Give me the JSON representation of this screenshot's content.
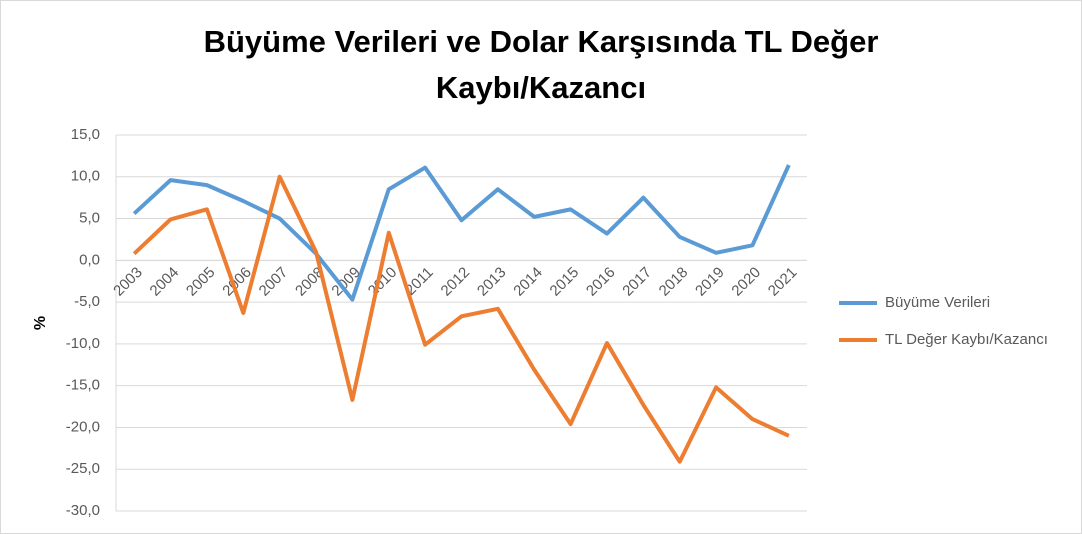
{
  "chart_data": {
    "type": "line",
    "title": "Büyüme Verileri ve Dolar Karşısında TL Değer Kaybı/Kazancı",
    "y_label": "%",
    "categories": [
      "2003",
      "2004",
      "2005",
      "2006",
      "2007",
      "2008",
      "2009",
      "2010",
      "2011",
      "2012",
      "2013",
      "2014",
      "2015",
      "2016",
      "2017",
      "2018",
      "2019",
      "2020",
      "2021"
    ],
    "series": [
      {
        "name": "Büyüme Verileri",
        "color": "#5b9bd5",
        "values": [
          5.6,
          9.6,
          9.0,
          7.1,
          5.0,
          0.8,
          -4.7,
          8.5,
          11.1,
          4.8,
          8.5,
          5.2,
          6.1,
          3.2,
          7.5,
          2.8,
          0.9,
          1.8,
          11.4
        ]
      },
      {
        "name": "TL Değer Kaybı/Kazancı",
        "color": "#ed7d31",
        "values": [
          0.8,
          4.9,
          6.1,
          -6.3,
          10.0,
          1.0,
          -16.7,
          3.3,
          -10.1,
          -6.7,
          -5.8,
          -13.1,
          -19.6,
          -9.9,
          -17.3,
          -24.1,
          -15.2,
          -19.0,
          -21.0
        ]
      }
    ],
    "ylim": [
      -30,
      15
    ],
    "yticks": [
      {
        "value": -30,
        "label": "-30,0"
      },
      {
        "value": -25,
        "label": "-25,0"
      },
      {
        "value": -20,
        "label": "-20,0"
      },
      {
        "value": -15,
        "label": "-15,0"
      },
      {
        "value": -10,
        "label": "-10,0"
      },
      {
        "value": -5,
        "label": "-5,0"
      },
      {
        "value": 0,
        "label": "0,0"
      },
      {
        "value": 5,
        "label": "5,0"
      },
      {
        "value": 10,
        "label": "10,0"
      },
      {
        "value": 15,
        "label": "15,0"
      }
    ],
    "grid": true,
    "legend": "right"
  }
}
